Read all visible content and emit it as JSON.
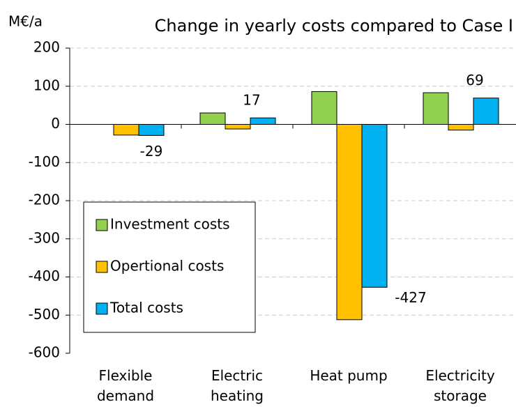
{
  "chart_data": {
    "type": "bar",
    "title": "Change in yearly costs compared to Case I",
    "y_label": "M€/a",
    "categories": [
      "Flexible demand",
      "Electric heating",
      "Heat pump",
      "Electricity storage"
    ],
    "series": [
      {
        "name": "Investment costs",
        "color": "#92d050",
        "values": [
          0,
          30,
          86,
          83
        ]
      },
      {
        "name": "Opertional costs",
        "color": "#ffc000",
        "values": [
          -28,
          -12,
          -512,
          -15
        ]
      },
      {
        "name": "Total costs",
        "color": "#00b0f0",
        "values": [
          -29,
          17,
          -427,
          69
        ]
      }
    ],
    "labeled_series": 2,
    "ylim": [
      -600,
      200
    ],
    "yticks": [
      -600,
      -500,
      -400,
      -300,
      -200,
      -100,
      0,
      100,
      200
    ],
    "grid": true
  }
}
